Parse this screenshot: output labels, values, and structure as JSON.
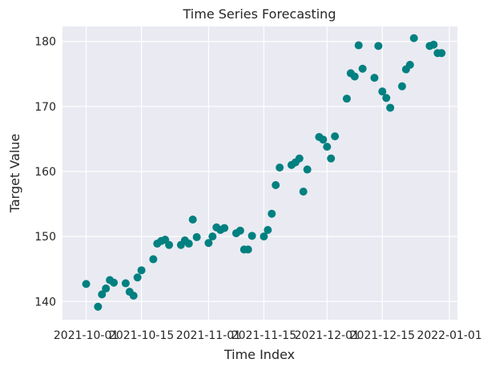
{
  "chart_data": {
    "type": "scatter",
    "title": "Time Series Forecasting",
    "xlabel": "Time Index",
    "ylabel": "Target Value",
    "x_ticks": [
      "2021-10-01",
      "2021-10-15",
      "2021-11-01",
      "2021-11-15",
      "2021-12-01",
      "2021-12-15",
      "2022-01-01"
    ],
    "y_ticks": [
      140,
      150,
      160,
      170,
      180
    ],
    "xlim": [
      "2021-09-25",
      "2022-01-03"
    ],
    "ylim": [
      137.2,
      182.3
    ],
    "grid": true,
    "point_color": "#008080",
    "background_color": "#eaeaf2",
    "series": [
      {
        "x": [
          "2021-10-01",
          "2021-10-04",
          "2021-10-05",
          "2021-10-06",
          "2021-10-07",
          "2021-10-08",
          "2021-10-11",
          "2021-10-12",
          "2021-10-13",
          "2021-10-14",
          "2021-10-15",
          "2021-10-18",
          "2021-10-19",
          "2021-10-20",
          "2021-10-21",
          "2021-10-22",
          "2021-10-25",
          "2021-10-26",
          "2021-10-27",
          "2021-10-28",
          "2021-10-29",
          "2021-11-01",
          "2021-11-02",
          "2021-11-03",
          "2021-11-04",
          "2021-11-05",
          "2021-11-08",
          "2021-11-09",
          "2021-11-10",
          "2021-11-11",
          "2021-11-12",
          "2021-11-15",
          "2021-11-16",
          "2021-11-17",
          "2021-11-18",
          "2021-11-19",
          "2021-11-22",
          "2021-11-23",
          "2021-11-24",
          "2021-11-25",
          "2021-11-26",
          "2021-11-29",
          "2021-11-30",
          "2021-12-01",
          "2021-12-02",
          "2021-12-03",
          "2021-12-06",
          "2021-12-07",
          "2021-12-08",
          "2021-12-09",
          "2021-12-10",
          "2021-12-13",
          "2021-12-14",
          "2021-12-15",
          "2021-12-16",
          "2021-12-17",
          "2021-12-20",
          "2021-12-21",
          "2021-12-22",
          "2021-12-23",
          "2021-12-27",
          "2021-12-28",
          "2021-12-29",
          "2021-12-30"
        ],
        "y": [
          142.7,
          139.2,
          141.1,
          142.0,
          143.3,
          142.9,
          142.8,
          141.5,
          140.9,
          143.7,
          144.8,
          146.5,
          148.9,
          149.3,
          149.5,
          148.7,
          148.7,
          149.4,
          148.9,
          152.6,
          149.9,
          149.0,
          150.0,
          151.4,
          151.0,
          151.3,
          150.5,
          150.9,
          148.0,
          148.0,
          150.1,
          150.0,
          151.0,
          153.5,
          157.9,
          160.6,
          161.0,
          161.4,
          162.0,
          156.9,
          160.3,
          165.3,
          164.9,
          163.8,
          162.0,
          165.4,
          171.2,
          175.1,
          174.6,
          179.4,
          175.8,
          174.4,
          179.3,
          172.3,
          171.3,
          169.8,
          173.1,
          175.7,
          176.4,
          180.5,
          179.3,
          179.5,
          178.2,
          178.2
        ]
      }
    ]
  }
}
